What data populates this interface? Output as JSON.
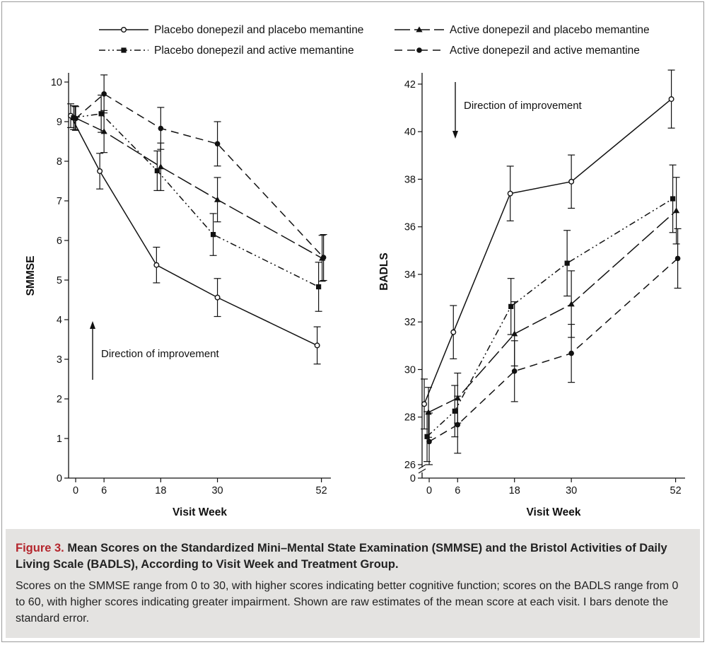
{
  "legend": {
    "entries": [
      "Placebo donepezil and placebo memantine",
      "Active donepezil and placebo memantine",
      "Placebo donepezil and active memantine",
      "Active donepezil and active memantine"
    ]
  },
  "caption": {
    "figure_label": "Figure 3.",
    "title": "Mean Scores on the Standardized Mini–Mental State Examination (SMMSE) and the Bristol Activities of Daily Living Scale (BADLS), According to Visit Week and Treatment Group.",
    "body": "Scores on the SMMSE range from 0 to 30, with higher scores indicating better cognitive function; scores on the BADLS range from 0 to 60, with higher scores indicating greater impairment. Shown are raw estimates of the mean score at each visit. I bars denote the standard error."
  },
  "colors": {
    "ink": "#111111",
    "caption_bg": "#e4e3e1",
    "figure_label": "#b4262d"
  },
  "chart_data": [
    {
      "type": "line",
      "ylabel": "SMMSE",
      "xlabel": "Visit Week",
      "x": [
        0,
        6,
        18,
        30,
        52
      ],
      "xlim": [
        -1.5,
        54
      ],
      "ylim": [
        0,
        10
      ],
      "yticks": [
        0,
        1,
        2,
        3,
        4,
        5,
        6,
        7,
        8,
        9,
        10
      ],
      "annotation": "Direction of improvement",
      "annotation_arrow": "up",
      "series": [
        {
          "name": "Placebo donepezil and placebo memantine",
          "values": [
            9.15,
            7.75,
            5.38,
            4.56,
            3.35
          ],
          "se": [
            0.3,
            0.45,
            0.45,
            0.48,
            0.47
          ]
        },
        {
          "name": "Active donepezil and placebo memantine",
          "values": [
            9.1,
            8.75,
            7.86,
            7.03,
            5.55
          ],
          "se": [
            0.3,
            0.53,
            0.6,
            0.56,
            0.58
          ]
        },
        {
          "name": "Placebo donepezil and active memantine",
          "values": [
            9.1,
            9.2,
            7.76,
            6.15,
            4.83
          ],
          "se": [
            0.3,
            0.47,
            0.5,
            0.53,
            0.62
          ]
        },
        {
          "name": "Active donepezil and active memantine",
          "values": [
            9.08,
            9.7,
            8.83,
            8.44,
            5.57
          ],
          "se": [
            0.3,
            0.48,
            0.53,
            0.56,
            0.58
          ]
        }
      ]
    },
    {
      "type": "line",
      "ylabel": "BADLS",
      "xlabel": "Visit Week",
      "x": [
        0,
        6,
        18,
        30,
        52
      ],
      "xlim": [
        -1.5,
        54
      ],
      "ylim": [
        0,
        42.5
      ],
      "axis_break": [
        0,
        26
      ],
      "yticks": [
        0,
        26,
        28,
        30,
        32,
        34,
        36,
        38,
        40,
        42
      ],
      "annotation": "Direction of improvement",
      "annotation_arrow": "down",
      "series": [
        {
          "name": "Placebo donepezil and placebo memantine",
          "values": [
            28.55,
            31.57,
            37.4,
            37.9,
            41.37
          ],
          "se": [
            1.05,
            1.12,
            1.15,
            1.12,
            1.22
          ]
        },
        {
          "name": "Active donepezil and placebo memantine",
          "values": [
            28.2,
            28.8,
            31.5,
            32.75,
            36.68
          ],
          "se": [
            1.05,
            1.05,
            1.35,
            1.4,
            1.4
          ]
        },
        {
          "name": "Placebo donepezil and active memantine",
          "values": [
            27.18,
            28.25,
            32.65,
            34.47,
            37.18
          ],
          "se": [
            1.05,
            1.08,
            1.18,
            1.38,
            1.42
          ]
        },
        {
          "name": "Active donepezil and active memantine",
          "values": [
            26.97,
            27.68,
            29.93,
            30.68,
            34.67
          ],
          "se": [
            1.2,
            1.2,
            1.28,
            1.22,
            1.25
          ]
        }
      ]
    }
  ]
}
